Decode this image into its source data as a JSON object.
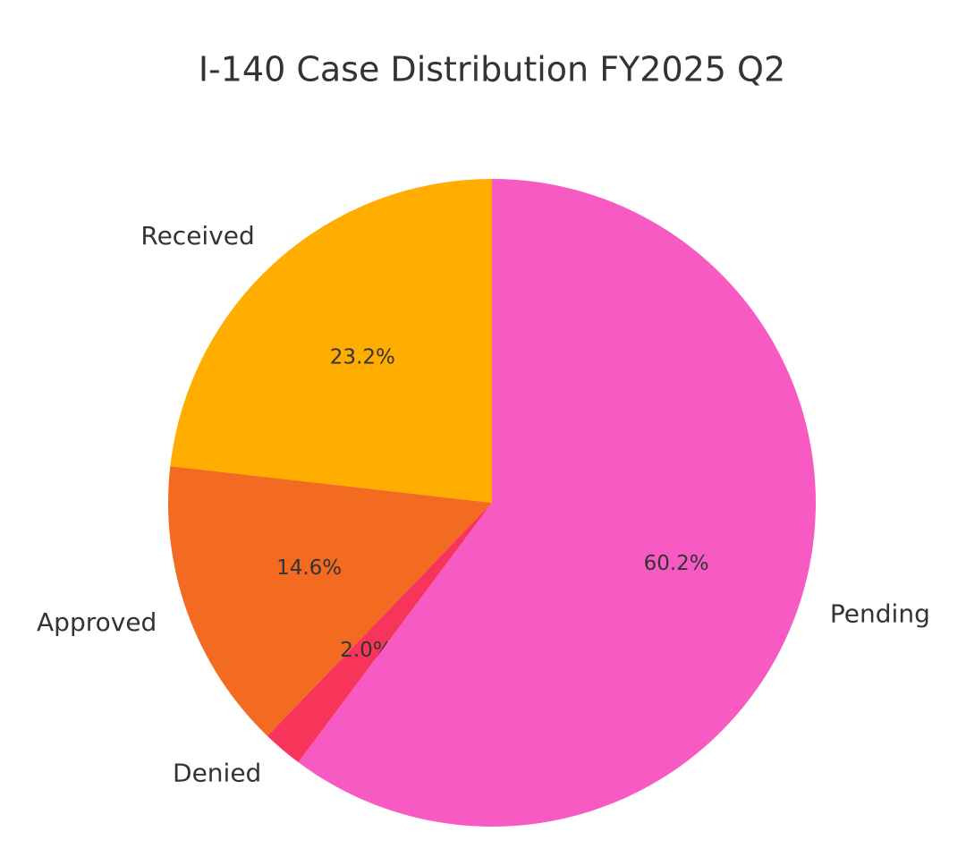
{
  "chart_data": {
    "type": "pie",
    "title": "I-140 Case Distribution FY2025 Q2",
    "categories": [
      "Received",
      "Approved",
      "Denied",
      "Pending"
    ],
    "values": [
      23.2,
      14.6,
      2.0,
      60.2
    ],
    "value_labels": [
      "23.2%",
      "14.6%",
      "2.0%",
      "60.2%"
    ],
    "colors": [
      "#ffae00",
      "#f26b21",
      "#f7355a",
      "#f75ac3"
    ]
  }
}
